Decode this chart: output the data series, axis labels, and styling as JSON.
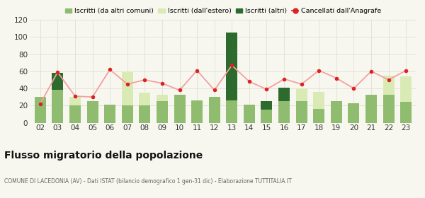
{
  "years": [
    "02",
    "03",
    "04",
    "05",
    "06",
    "07",
    "08",
    "09",
    "10",
    "11",
    "12",
    "13",
    "14",
    "15",
    "16",
    "17",
    "18",
    "19",
    "20",
    "21",
    "22",
    "23"
  ],
  "iscritti_altri_comuni": [
    30,
    38,
    20,
    25,
    21,
    20,
    20,
    25,
    33,
    26,
    30,
    26,
    21,
    15,
    25,
    25,
    16,
    25,
    23,
    33,
    33,
    24
  ],
  "iscritti_estero": [
    0,
    0,
    10,
    0,
    0,
    40,
    15,
    8,
    0,
    0,
    0,
    0,
    0,
    0,
    0,
    15,
    20,
    0,
    0,
    0,
    22,
    30
  ],
  "iscritti_altri": [
    0,
    20,
    0,
    0,
    0,
    0,
    0,
    0,
    0,
    0,
    0,
    79,
    0,
    10,
    16,
    0,
    0,
    0,
    0,
    0,
    0,
    0
  ],
  "cancellati": [
    22,
    59,
    31,
    30,
    62,
    45,
    50,
    46,
    38,
    61,
    38,
    67,
    48,
    39,
    51,
    45,
    61,
    52,
    40,
    60,
    50,
    61
  ],
  "color_altri_comuni": "#8fbc6e",
  "color_estero": "#daeab5",
  "color_altri": "#2d6a2d",
  "color_cancellati": "#dd2222",
  "color_line": "#f4a0a0",
  "background_color": "#f7f7f0",
  "grid_color": "#e0e0d0",
  "title": "Flusso migratorio della popolazione",
  "subtitle": "COMUNE DI LACEDONIA (AV) - Dati ISTAT (bilancio demografico 1 gen-31 dic) - Elaborazione TUTTITALIA.IT",
  "legend_labels": [
    "Iscritti (da altri comuni)",
    "Iscritti (dall'estero)",
    "Iscritti (altri)",
    "Cancellati dall'Anagrafe"
  ],
  "ylim": [
    0,
    120
  ],
  "yticks": [
    0,
    20,
    40,
    60,
    80,
    100,
    120
  ]
}
